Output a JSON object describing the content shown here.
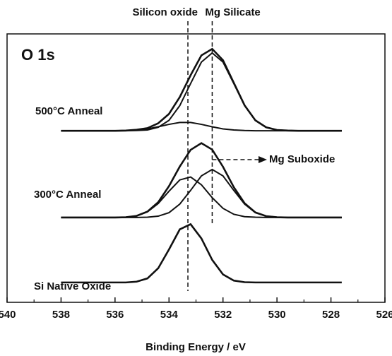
{
  "chart_data": {
    "type": "line",
    "panel_label": "O 1s",
    "xlabel": "Binding Energy / eV",
    "xlim": [
      540,
      526
    ],
    "xticks": [
      540,
      538,
      536,
      534,
      532,
      530,
      528,
      526
    ],
    "ylim": [
      0,
      100
    ],
    "x": [
      538.0,
      537.6,
      537.2,
      536.8,
      536.4,
      536.0,
      535.6,
      535.2,
      534.8,
      534.4,
      534.0,
      533.6,
      533.2,
      532.8,
      532.4,
      532.0,
      531.6,
      531.2,
      530.8,
      530.4,
      530.0,
      529.6,
      529.2,
      528.8,
      528.4,
      528.0,
      527.6
    ],
    "series": [
      {
        "name": "Si Native Oxide",
        "color": "#111111",
        "values": [
          7.4,
          7.4,
          7.4,
          7.4,
          7.4,
          7.4,
          7.4,
          7.7,
          8.9,
          12.7,
          19.7,
          27.2,
          29.1,
          23.8,
          15.8,
          10.4,
          8.1,
          7.5,
          7.4,
          7.4,
          7.4,
          7.4,
          7.4,
          7.4,
          7.4,
          7.4,
          7.4
        ]
      },
      {
        "name": "300°C Anneal",
        "color": "#111111",
        "values": [
          31.6,
          31.6,
          31.6,
          31.6,
          31.6,
          31.6,
          31.7,
          32.2,
          33.8,
          37.3,
          43.3,
          50.6,
          56.8,
          59.3,
          56.9,
          50.5,
          42.9,
          36.9,
          33.5,
          32.1,
          31.7,
          31.6,
          31.6,
          31.6,
          31.6,
          31.6,
          31.6
        ]
      },
      {
        "color": "#111111",
        "values": [
          31.6,
          31.6,
          31.6,
          31.6,
          31.6,
          31.6,
          31.7,
          32.2,
          33.7,
          36.8,
          41.4,
          45.6,
          46.7,
          43.8,
          39.0,
          35.0,
          32.8,
          31.9,
          31.7,
          31.6,
          31.6,
          31.6,
          31.6,
          31.6,
          31.6,
          31.6,
          31.6
        ]
      },
      {
        "color": "#111111",
        "values": [
          31.6,
          31.6,
          31.6,
          31.6,
          31.6,
          31.6,
          31.6,
          31.6,
          31.7,
          32.1,
          33.4,
          36.6,
          41.7,
          47.1,
          49.5,
          47.1,
          41.7,
          36.6,
          33.4,
          32.1,
          31.7,
          31.6,
          31.6,
          31.6,
          31.6,
          31.6,
          31.6
        ]
      },
      {
        "name": "500°C Anneal",
        "color": "#111111",
        "values": [
          63.9,
          63.9,
          63.9,
          63.9,
          63.9,
          63.9,
          64.0,
          64.3,
          64.9,
          66.7,
          70.2,
          76.5,
          84.6,
          92.0,
          94.4,
          90.2,
          81.8,
          73.4,
          67.8,
          65.2,
          64.2,
          64.0,
          63.9,
          63.9,
          63.9,
          63.9,
          63.9
        ]
      },
      {
        "color": "#111111",
        "values": [
          63.9,
          63.9,
          63.9,
          63.9,
          63.9,
          63.9,
          63.9,
          64.0,
          64.2,
          65.2,
          67.8,
          73.3,
          81.5,
          89.5,
          92.9,
          89.5,
          81.5,
          73.3,
          67.8,
          65.2,
          64.2,
          64.0,
          63.9,
          63.9,
          63.9,
          63.9,
          63.9
        ]
      },
      {
        "color": "#111111",
        "values": [
          63.9,
          63.9,
          63.9,
          63.9,
          63.9,
          63.9,
          64.0,
          64.2,
          64.6,
          65.4,
          66.3,
          67.0,
          67.0,
          66.3,
          65.4,
          64.6,
          64.2,
          64.0,
          63.9,
          63.9,
          63.9,
          63.9,
          63.9,
          63.9,
          63.9,
          63.9,
          63.9
        ]
      }
    ],
    "annotations": [
      {
        "text": "Silicon oxide",
        "x": 533.3
      },
      {
        "text": "Mg Silicate",
        "x": 532.4
      },
      {
        "text": "Mg Suboxide"
      }
    ]
  }
}
